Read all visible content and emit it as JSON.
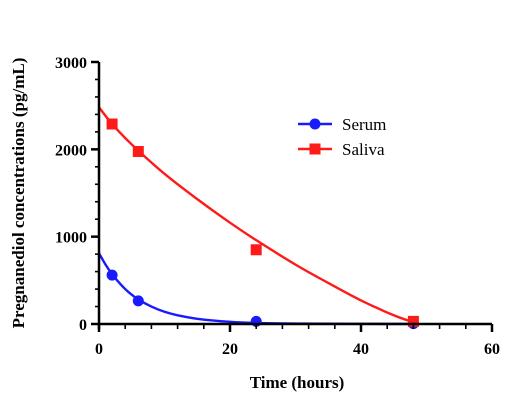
{
  "chart_data": {
    "type": "line",
    "title": "",
    "xlabel": "Time (hours)",
    "ylabel": "Pregnanediol concentrations (pg/mL)",
    "xlim": [
      0,
      60
    ],
    "ylim": [
      0,
      3000
    ],
    "x_ticks": [
      0,
      20,
      40,
      60
    ],
    "x_tick_labels": [
      "0",
      "20",
      "40",
      "60"
    ],
    "y_ticks": [
      0,
      1000,
      2000,
      3000
    ],
    "y_tick_labels": [
      "0",
      "1000",
      "2000",
      "3000"
    ],
    "grid": false,
    "legend_position": "top-right",
    "series": [
      {
        "name": "Serum",
        "color": "#1a1aff",
        "marker": "circle",
        "points": [
          [
            2,
            560
          ],
          [
            6,
            265
          ],
          [
            24,
            30
          ],
          [
            48,
            5
          ]
        ],
        "fit_curve": {
          "x": [
            0,
            1,
            2,
            3,
            4,
            5,
            6,
            8,
            10,
            12,
            15,
            20,
            24,
            30,
            40,
            48
          ],
          "y": [
            810,
            680,
            570,
            480,
            400,
            335,
            280,
            200,
            140,
            100,
            60,
            25,
            12,
            5,
            2,
            1
          ]
        }
      },
      {
        "name": "Saliva",
        "color": "#ff1a1a",
        "marker": "square",
        "points": [
          [
            2,
            2290
          ],
          [
            6,
            1975
          ],
          [
            24,
            850
          ],
          [
            48,
            30
          ]
        ],
        "fit_curve": {
          "x": [
            0,
            2,
            4,
            6,
            10,
            15,
            20,
            24,
            30,
            35,
            40,
            45,
            48
          ],
          "y": [
            2480,
            2290,
            2130,
            1985,
            1720,
            1430,
            1160,
            960,
            680,
            470,
            270,
            100,
            20
          ]
        }
      }
    ]
  }
}
